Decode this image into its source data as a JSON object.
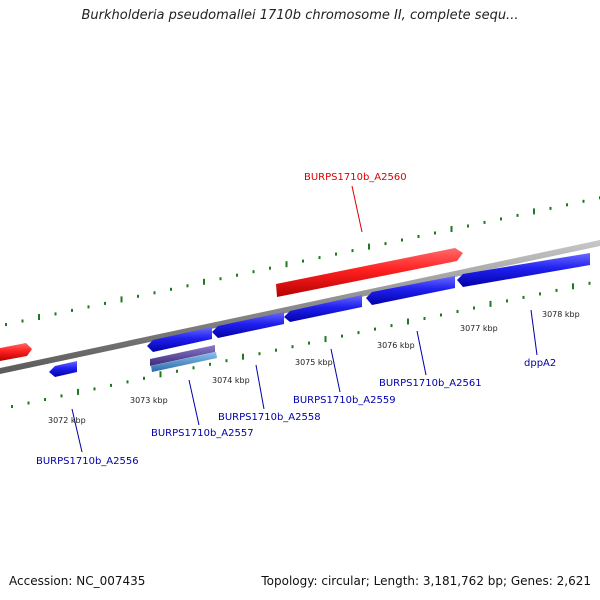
{
  "title": "Burkholderia pseudomallei 1710b chromosome II, complete sequ...",
  "footer": {
    "accession": "Accession: NC_007435",
    "summary": "Topology: circular; Length: 3,181,762 bp; Genes: 2,621"
  },
  "colors": {
    "forward_gene": "#ee1111",
    "reverse_gene": "#1a1ae6",
    "backbone": "#8a8a8a",
    "ticks": "#1f7a1f",
    "forward_label": "#dd0000",
    "reverse_label": "#0000aa",
    "feature_purple": "#5a4a9a",
    "feature_steel": "#4a8ac8"
  },
  "kbp_labels": [
    {
      "text": "3072 kbp",
      "pos": 3072
    },
    {
      "text": "3073 kbp",
      "pos": 3073
    },
    {
      "text": "3074 kbp",
      "pos": 3074
    },
    {
      "text": "3075 kbp",
      "pos": 3075
    },
    {
      "text": "3076 kbp",
      "pos": 3076
    },
    {
      "text": "3077 kbp",
      "pos": 3077
    },
    {
      "text": "3078 kbp",
      "pos": 3078
    }
  ],
  "genes": [
    {
      "name": "BURPS1710b_A2556",
      "strand": "reverse",
      "start": 3071.9,
      "end": 3072.1
    },
    {
      "name": "BURPS1710b_A2557",
      "strand": "reverse",
      "start": 3072.9,
      "end": 3073.6
    },
    {
      "name": "BURPS1710b_A2558",
      "strand": "reverse",
      "start": 3073.6,
      "end": 3074.5
    },
    {
      "name": "BURPS1710b_A2559",
      "strand": "reverse",
      "start": 3074.5,
      "end": 3075.4
    },
    {
      "name": "BURPS1710b_A2560",
      "strand": "forward",
      "start": 3074.3,
      "end": 3076.5
    },
    {
      "name": "BURPS1710b_A2561",
      "strand": "reverse",
      "start": 3075.5,
      "end": 3076.6
    },
    {
      "name": "dppA2",
      "strand": "reverse",
      "start": 3076.6,
      "end": 3078.6
    }
  ]
}
